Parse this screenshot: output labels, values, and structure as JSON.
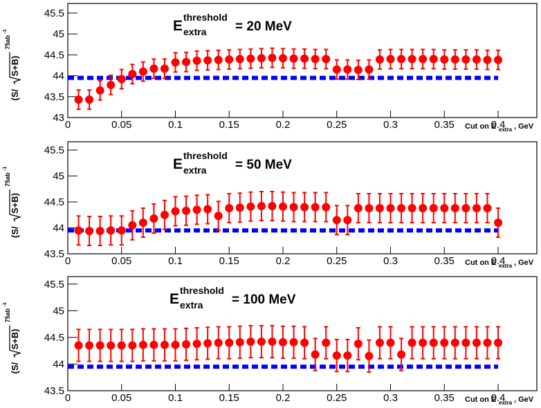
{
  "chart_data": [
    {
      "type": "errorbar",
      "title": {
        "symbol": "E",
        "superscript": "threshold",
        "subscript": "extra",
        "text": "= 20 MeV"
      },
      "ylabel": {
        "text": "(S/",
        "radicand": "S+B)",
        "superscript": "75ab",
        "exponent": "-1"
      },
      "xlabel": {
        "text": "Cut on E",
        "subscript": "extra",
        "suffix": ", GeV"
      },
      "x": [
        0.01,
        0.02,
        0.03,
        0.04,
        0.05,
        0.06,
        0.07,
        0.08,
        0.09,
        0.1,
        0.11,
        0.12,
        0.13,
        0.14,
        0.15,
        0.16,
        0.17,
        0.18,
        0.19,
        0.2,
        0.21,
        0.22,
        0.23,
        0.24,
        0.25,
        0.26,
        0.27,
        0.28,
        0.29,
        0.3,
        0.31,
        0.32,
        0.33,
        0.34,
        0.35,
        0.36,
        0.37,
        0.38,
        0.39,
        0.4
      ],
      "series": [
        {
          "color": "#ff0000",
          "error": 0.23,
          "values": [
            43.43,
            43.43,
            43.65,
            43.78,
            43.92,
            44.04,
            44.1,
            44.17,
            44.17,
            44.32,
            44.33,
            44.36,
            44.37,
            44.38,
            44.39,
            44.4,
            44.41,
            44.42,
            44.43,
            44.42,
            44.41,
            44.41,
            44.4,
            44.4,
            44.15,
            44.15,
            44.14,
            44.15,
            44.39,
            44.4,
            44.4,
            44.4,
            44.4,
            44.4,
            44.39,
            44.39,
            44.39,
            44.39,
            44.38,
            44.38
          ]
        }
      ],
      "reference_line": {
        "y": 43.95,
        "x": [
          0,
          0.4
        ],
        "color": "#0000ff"
      },
      "xlim": [
        0,
        0.436
      ],
      "xticks": [
        0,
        0.05,
        0.1,
        0.15,
        0.2,
        0.25,
        0.3,
        0.35,
        0.4
      ],
      "ylim": [
        43,
        45.73
      ],
      "yticks": [
        43,
        43.5,
        44,
        44.5,
        45,
        45.5
      ]
    },
    {
      "type": "errorbar",
      "title": {
        "symbol": "E",
        "superscript": "threshold",
        "subscript": "extra",
        "text": "= 50 MeV"
      },
      "ylabel": {
        "text": "(S/",
        "radicand": "S+B)",
        "superscript": "75ab",
        "exponent": "-1"
      },
      "xlabel": {
        "text": "Cut on E",
        "subscript": "extra",
        "suffix": ", GeV"
      },
      "x": [
        0.01,
        0.02,
        0.03,
        0.04,
        0.05,
        0.06,
        0.07,
        0.08,
        0.09,
        0.1,
        0.11,
        0.12,
        0.13,
        0.14,
        0.15,
        0.16,
        0.17,
        0.18,
        0.19,
        0.2,
        0.21,
        0.22,
        0.23,
        0.24,
        0.25,
        0.26,
        0.27,
        0.28,
        0.29,
        0.3,
        0.31,
        0.32,
        0.33,
        0.34,
        0.35,
        0.36,
        0.37,
        0.38,
        0.39,
        0.4
      ],
      "series": [
        {
          "color": "#ff0000",
          "error": 0.28,
          "values": [
            43.95,
            43.94,
            43.94,
            43.95,
            43.95,
            44.05,
            44.1,
            44.18,
            44.25,
            44.32,
            44.33,
            44.35,
            44.36,
            44.23,
            44.38,
            44.39,
            44.41,
            44.42,
            44.42,
            44.41,
            44.4,
            44.4,
            44.4,
            44.4,
            44.15,
            44.15,
            44.38,
            44.38,
            44.38,
            44.38,
            44.38,
            44.38,
            44.38,
            44.38,
            44.38,
            44.38,
            44.38,
            44.38,
            44.38,
            44.1
          ]
        }
      ],
      "reference_line": {
        "y": 43.95,
        "x": [
          0,
          0.4
        ],
        "color": "#0000ff"
      },
      "xlim": [
        0,
        0.436
      ],
      "xticks": [
        0,
        0.05,
        0.1,
        0.15,
        0.2,
        0.25,
        0.3,
        0.35,
        0.4
      ],
      "ylim": [
        43.5,
        45.66
      ],
      "yticks": [
        43.5,
        44,
        44.5,
        45,
        45.5
      ]
    },
    {
      "type": "errorbar",
      "title": {
        "symbol": "E",
        "superscript": "threshold",
        "subscript": "extra",
        "text": "= 100 MeV"
      },
      "ylabel": {
        "text": "(S/",
        "radicand": "S+B)",
        "superscript": "75ab",
        "exponent": "-1"
      },
      "xlabel": {
        "text": "Cut on E",
        "subscript": "extra",
        "suffix": ", GeV"
      },
      "x": [
        0.01,
        0.02,
        0.03,
        0.04,
        0.05,
        0.06,
        0.07,
        0.08,
        0.09,
        0.1,
        0.11,
        0.12,
        0.13,
        0.14,
        0.15,
        0.16,
        0.17,
        0.18,
        0.19,
        0.2,
        0.21,
        0.22,
        0.23,
        0.24,
        0.25,
        0.26,
        0.27,
        0.28,
        0.29,
        0.3,
        0.31,
        0.32,
        0.33,
        0.34,
        0.35,
        0.36,
        0.37,
        0.38,
        0.39,
        0.4
      ],
      "series": [
        {
          "color": "#ff0000",
          "error": 0.3,
          "values": [
            44.35,
            44.35,
            44.35,
            44.35,
            44.35,
            44.35,
            44.36,
            44.36,
            44.36,
            44.36,
            44.37,
            44.38,
            44.39,
            44.4,
            44.4,
            44.41,
            44.42,
            44.42,
            44.42,
            44.41,
            44.41,
            44.4,
            44.18,
            44.4,
            44.16,
            44.16,
            44.38,
            44.15,
            44.4,
            44.4,
            44.18,
            44.4,
            44.4,
            44.4,
            44.4,
            44.4,
            44.4,
            44.4,
            44.4,
            44.4
          ]
        }
      ],
      "reference_line": {
        "y": 43.95,
        "x": [
          0,
          0.4
        ],
        "color": "#0000ff"
      },
      "xlim": [
        0,
        0.436
      ],
      "xticks": [
        0,
        0.05,
        0.1,
        0.15,
        0.2,
        0.25,
        0.3,
        0.35,
        0.4
      ],
      "ylim": [
        43.5,
        45.64
      ],
      "yticks": [
        43.5,
        44,
        44.5,
        45,
        45.5
      ]
    }
  ]
}
